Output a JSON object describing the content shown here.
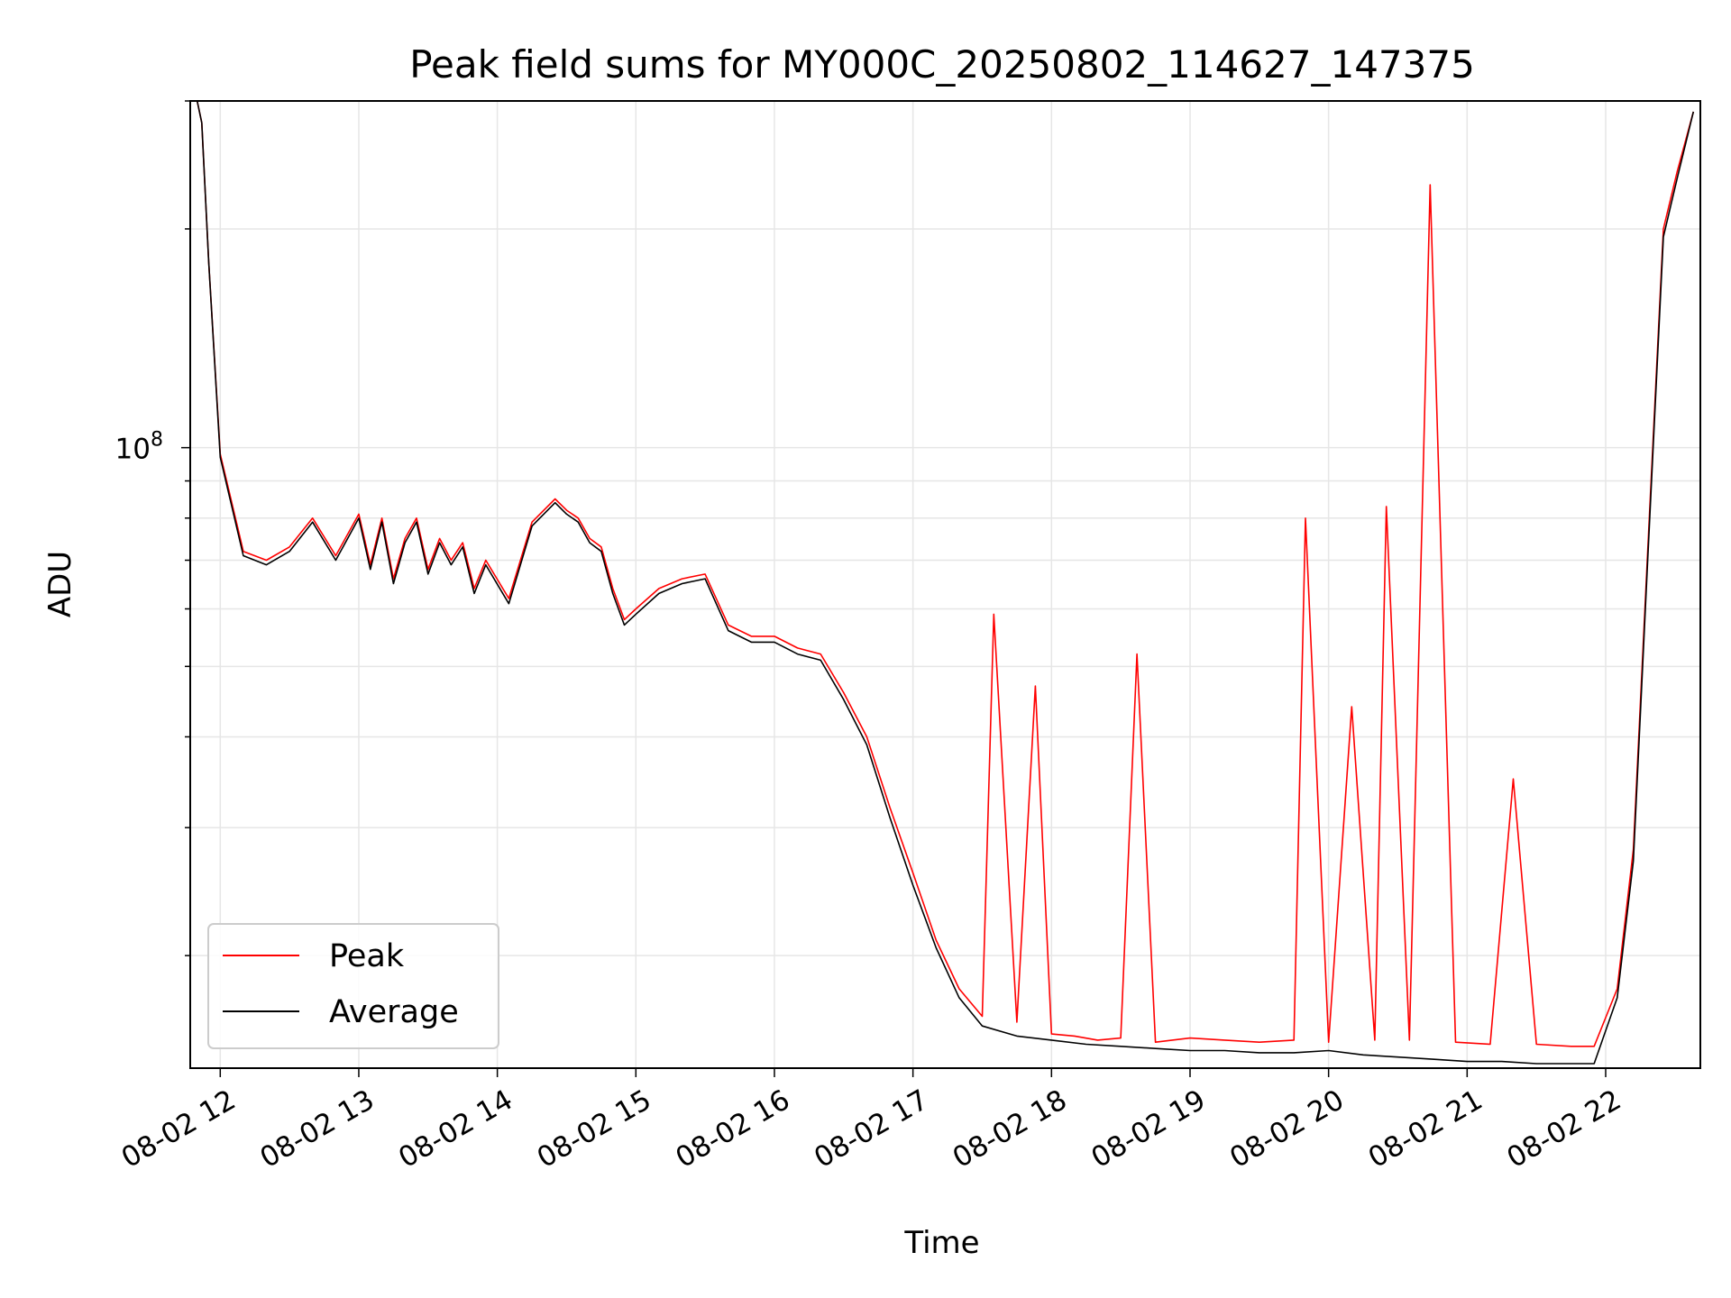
{
  "chart_data": {
    "type": "line",
    "title": "Peak field sums for MY000C_20250802_114627_147375",
    "xlabel": "Time",
    "ylabel": "ADU",
    "y_scale": "log",
    "xlim": [
      "08-02 11:47",
      "08-02 22:41"
    ],
    "ylim": [
      14000000,
      300000000
    ],
    "grid": true,
    "legend_position": "lower-left",
    "x_ticks": [
      "08-02 12",
      "08-02 13",
      "08-02 14",
      "08-02 15",
      "08-02 16",
      "08-02 17",
      "08-02 18",
      "08-02 19",
      "08-02 20",
      "08-02 21",
      "08-02 22"
    ],
    "y_ticks": [
      {
        "value": 100000000,
        "base": "10",
        "exp": "8"
      }
    ],
    "x_tick_rotation": 30,
    "series": [
      {
        "name": "Peak",
        "color": "#ff0000",
        "x": [
          "08-02 11:50",
          "08-02 11:52",
          "08-02 11:55",
          "08-02 12:00",
          "08-02 12:10",
          "08-02 12:20",
          "08-02 12:30",
          "08-02 12:40",
          "08-02 12:50",
          "08-02 13:00",
          "08-02 13:05",
          "08-02 13:10",
          "08-02 13:15",
          "08-02 13:20",
          "08-02 13:25",
          "08-02 13:30",
          "08-02 13:35",
          "08-02 13:40",
          "08-02 13:45",
          "08-02 13:50",
          "08-02 13:55",
          "08-02 14:05",
          "08-02 14:15",
          "08-02 14:25",
          "08-02 14:30",
          "08-02 14:35",
          "08-02 14:40",
          "08-02 14:45",
          "08-02 14:50",
          "08-02 14:55",
          "08-02 15:00",
          "08-02 15:10",
          "08-02 15:20",
          "08-02 15:30",
          "08-02 15:40",
          "08-02 15:50",
          "08-02 16:00",
          "08-02 16:10",
          "08-02 16:20",
          "08-02 16:30",
          "08-02 16:40",
          "08-02 16:50",
          "08-02 17:00",
          "08-02 17:10",
          "08-02 17:20",
          "08-02 17:30",
          "08-02 17:35",
          "08-02 17:45",
          "08-02 17:53",
          "08-02 18:00",
          "08-02 18:10",
          "08-02 18:20",
          "08-02 18:30",
          "08-02 18:37",
          "08-02 18:45",
          "08-02 19:00",
          "08-02 19:15",
          "08-02 19:30",
          "08-02 19:45",
          "08-02 19:50",
          "08-02 20:00",
          "08-02 20:10",
          "08-02 20:20",
          "08-02 20:25",
          "08-02 20:35",
          "08-02 20:44",
          "08-02 20:55",
          "08-02 21:10",
          "08-02 21:20",
          "08-02 21:30",
          "08-02 21:45",
          "08-02 21:55",
          "08-02 22:05",
          "08-02 22:12",
          "08-02 22:18",
          "08-02 22:25",
          "08-02 22:31",
          "08-02 22:38"
        ],
        "y": [
          300000000,
          280000000,
          180000000,
          98000000,
          72000000,
          70000000,
          73000000,
          80000000,
          71000000,
          81000000,
          69000000,
          80000000,
          66000000,
          75000000,
          80000000,
          68000000,
          75000000,
          70000000,
          74000000,
          64000000,
          70000000,
          62000000,
          79000000,
          85000000,
          82000000,
          80000000,
          75000000,
          73000000,
          64000000,
          58000000,
          60000000,
          64000000,
          66000000,
          67000000,
          57000000,
          55000000,
          55000000,
          53000000,
          52000000,
          46000000,
          40000000,
          32000000,
          26000000,
          21000000,
          18000000,
          16500000,
          59000000,
          16200000,
          47000000,
          15600000,
          15500000,
          15300000,
          15400000,
          52000000,
          15200000,
          15400000,
          15300000,
          15200000,
          15300000,
          80000000,
          15200000,
          44000000,
          15300000,
          83000000,
          15300000,
          230000000,
          15200000,
          15100000,
          35000000,
          15100000,
          15000000,
          15000000,
          18000000,
          28000000,
          70000000,
          200000000,
          240000000,
          290000000
        ]
      },
      {
        "name": "Average",
        "color": "#000000",
        "x": [
          "08-02 11:50",
          "08-02 11:52",
          "08-02 11:55",
          "08-02 12:00",
          "08-02 12:10",
          "08-02 12:20",
          "08-02 12:30",
          "08-02 12:40",
          "08-02 12:50",
          "08-02 13:00",
          "08-02 13:05",
          "08-02 13:10",
          "08-02 13:15",
          "08-02 13:20",
          "08-02 13:25",
          "08-02 13:30",
          "08-02 13:35",
          "08-02 13:40",
          "08-02 13:45",
          "08-02 13:50",
          "08-02 13:55",
          "08-02 14:05",
          "08-02 14:15",
          "08-02 14:25",
          "08-02 14:30",
          "08-02 14:35",
          "08-02 14:40",
          "08-02 14:45",
          "08-02 14:50",
          "08-02 14:55",
          "08-02 15:00",
          "08-02 15:10",
          "08-02 15:20",
          "08-02 15:30",
          "08-02 15:40",
          "08-02 15:50",
          "08-02 16:00",
          "08-02 16:10",
          "08-02 16:20",
          "08-02 16:30",
          "08-02 16:40",
          "08-02 16:50",
          "08-02 17:00",
          "08-02 17:10",
          "08-02 17:20",
          "08-02 17:30",
          "08-02 17:45",
          "08-02 18:00",
          "08-02 18:15",
          "08-02 18:30",
          "08-02 18:45",
          "08-02 19:00",
          "08-02 19:15",
          "08-02 19:30",
          "08-02 19:45",
          "08-02 20:00",
          "08-02 20:15",
          "08-02 20:30",
          "08-02 20:45",
          "08-02 21:00",
          "08-02 21:15",
          "08-02 21:30",
          "08-02 21:45",
          "08-02 21:55",
          "08-02 22:05",
          "08-02 22:12",
          "08-02 22:18",
          "08-02 22:25",
          "08-02 22:31",
          "08-02 22:38"
        ],
        "y": [
          300000000,
          280000000,
          180000000,
          97000000,
          71000000,
          69000000,
          72000000,
          79000000,
          70000000,
          80000000,
          68000000,
          79000000,
          65000000,
          74000000,
          79000000,
          67000000,
          74000000,
          69000000,
          73000000,
          63000000,
          69000000,
          61000000,
          78000000,
          84000000,
          81000000,
          79000000,
          74000000,
          72000000,
          63000000,
          57000000,
          59000000,
          63000000,
          65000000,
          66000000,
          56000000,
          54000000,
          54000000,
          52000000,
          51000000,
          45000000,
          39000000,
          31000000,
          25000000,
          20500000,
          17500000,
          16000000,
          15500000,
          15300000,
          15100000,
          15000000,
          14900000,
          14800000,
          14800000,
          14700000,
          14700000,
          14800000,
          14600000,
          14500000,
          14400000,
          14300000,
          14300000,
          14200000,
          14200000,
          14200000,
          17500000,
          27000000,
          68000000,
          195000000,
          235000000,
          290000000
        ]
      }
    ]
  }
}
